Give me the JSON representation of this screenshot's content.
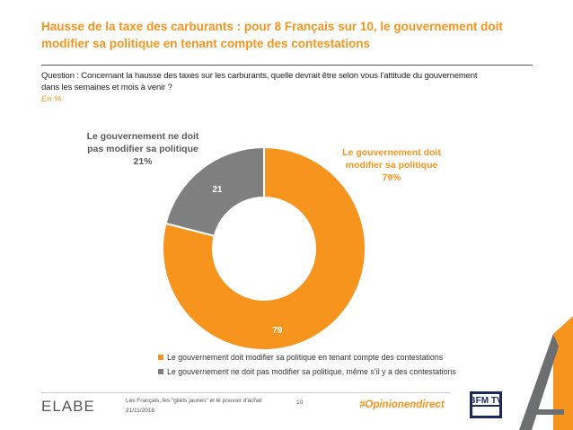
{
  "header": {
    "title_line1": "Hausse de la taxe des carburants : pour 8 Français sur 10, le gouvernement doit",
    "title_line2": "modifier sa politique en tenant compte des contestations",
    "question_line1": "Question : Concernant la hausse des taxes sur les carburants, quelle devrait être selon vous l’attitude du gouvernement",
    "question_line2": "dans les semaines et mois à venir ?",
    "unit": "En %"
  },
  "chart_data": {
    "type": "pie",
    "subtype": "donut",
    "series": [
      {
        "name": "Le gouvernement doit modifier sa politique en tenant compte des contestations",
        "short_label_line1": "Le gouvernement doit",
        "short_label_line2": "modifier sa politique",
        "percent_label": "79%",
        "value": 79,
        "value_label": "79",
        "color": "#f7941d"
      },
      {
        "name": "Le gouvernement ne doit pas modifier sa politique, même s’il y a des contestations",
        "short_label_line1": "Le gouvernement ne doit",
        "short_label_line2": "pas modifier sa politique",
        "percent_label": "21%",
        "value": 21,
        "value_label": "21",
        "color": "#7f7f7f"
      }
    ],
    "legend_position": "bottom"
  },
  "footer": {
    "logo": "ELABE",
    "source_line1": "Les Français, les \"gilets jaunes\" et le pouvoir d'achat",
    "source_line2": "21/11/2018",
    "page_number": "10",
    "hashtag": "#Opinionendirect",
    "partner_logo": "BFM TV"
  }
}
